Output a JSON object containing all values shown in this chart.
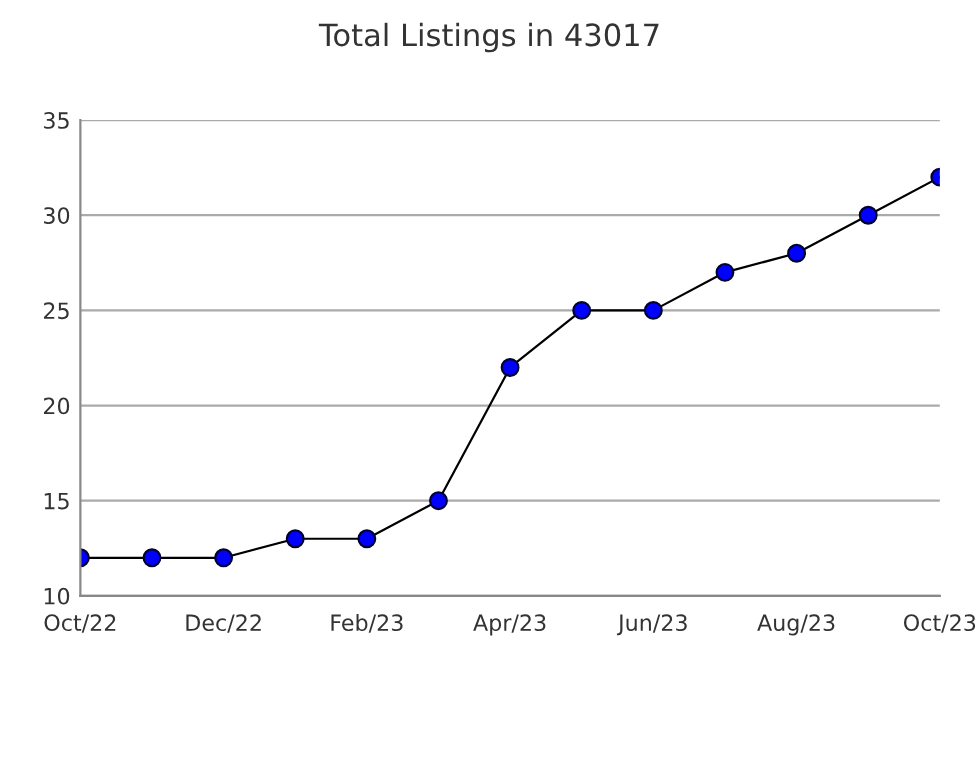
{
  "chart_data": {
    "type": "line",
    "title": "Total Listings in 43017",
    "categories": [
      "Oct/22",
      null,
      "Dec/22",
      null,
      "Feb/23",
      null,
      "Apr/23",
      null,
      "Jun/23",
      null,
      "Aug/23",
      null,
      "Oct/23"
    ],
    "series": [
      {
        "color": "#0000ff",
        "values": [
          12,
          12,
          12,
          13,
          13,
          15,
          22,
          25,
          25,
          27,
          28,
          30,
          32
        ]
      }
    ],
    "ylim": [
      10,
      35
    ],
    "yticks": [
      10,
      15,
      20,
      25,
      30,
      35
    ],
    "grid": "y",
    "marker": "circle",
    "line_style": "solid"
  }
}
